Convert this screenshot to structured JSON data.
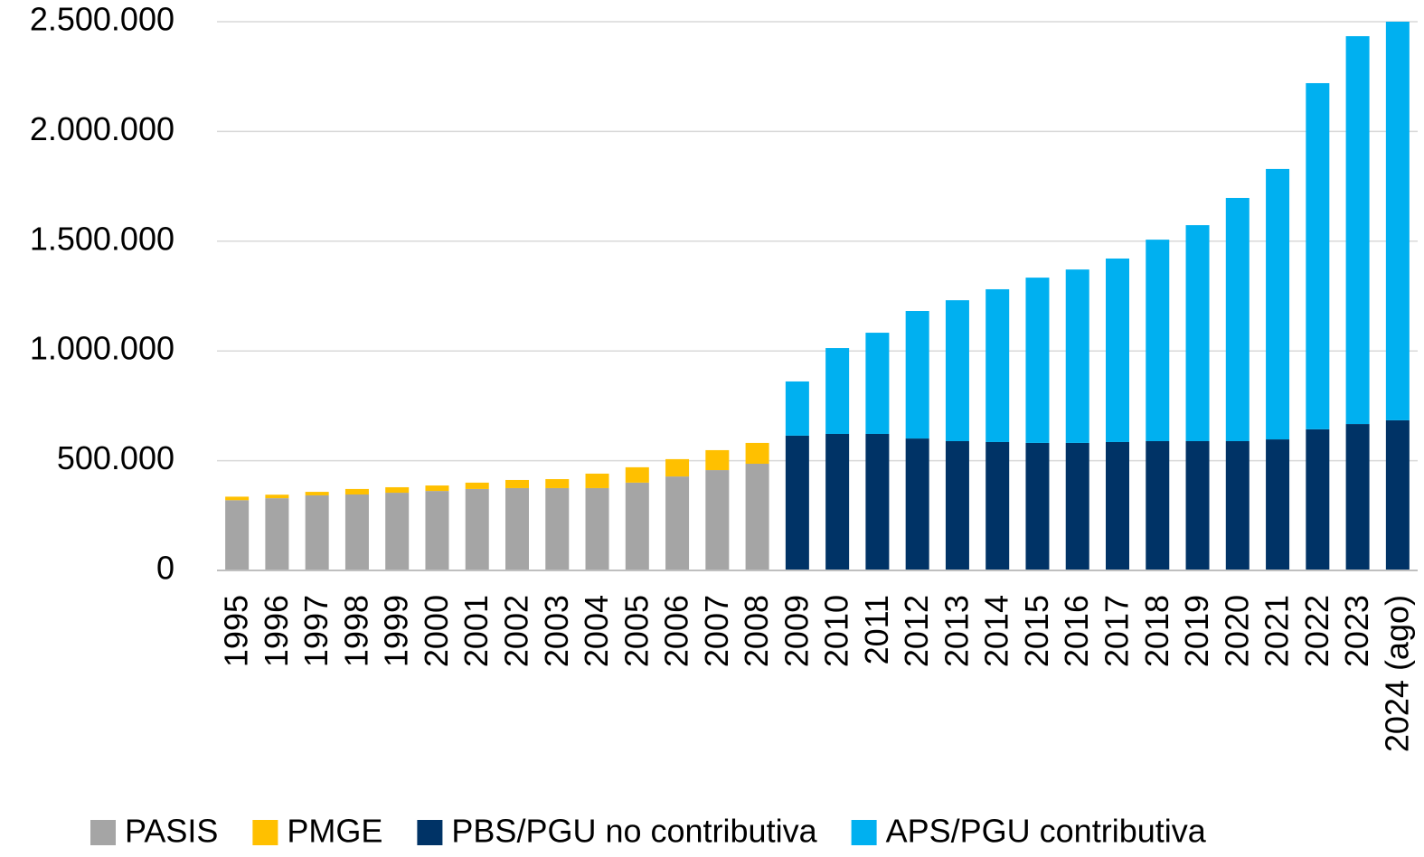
{
  "chart_data": {
    "type": "stacked_bar",
    "categories": [
      "1995",
      "1996",
      "1997",
      "1998",
      "1999",
      "2000",
      "2001",
      "2002",
      "2003",
      "2004",
      "2005",
      "2006",
      "2007",
      "2008",
      "2009",
      "2010",
      "2011",
      "2012",
      "2013",
      "2014",
      "2015",
      "2016",
      "2017",
      "2018",
      "2019",
      "2020",
      "2021",
      "2022",
      "2023",
      "2024 (ago)"
    ],
    "series": [
      {
        "name": "PASIS",
        "color": "#a5a5a5",
        "values": [
          320000,
          329000,
          342000,
          346000,
          354000,
          362000,
          371000,
          375000,
          375000,
          375000,
          400000,
          428000,
          457000,
          486000,
          null,
          null,
          null,
          null,
          null,
          null,
          null,
          null,
          null,
          null,
          null,
          null,
          null,
          null,
          null,
          null
        ]
      },
      {
        "name": "PMGE",
        "color": "#ffc000",
        "values": [
          16000,
          16000,
          16000,
          25000,
          25000,
          25000,
          29000,
          37000,
          41000,
          66000,
          70000,
          79000,
          91000,
          95000,
          null,
          null,
          null,
          null,
          null,
          null,
          null,
          null,
          null,
          null,
          null,
          null,
          null,
          null,
          null,
          null
        ]
      },
      {
        "name": "PBS/PGU no contributiva",
        "color": "#003366",
        "values": [
          null,
          null,
          null,
          null,
          null,
          null,
          null,
          null,
          null,
          null,
          null,
          null,
          null,
          null,
          614000,
          622000,
          622000,
          601000,
          589000,
          585000,
          581000,
          581000,
          585000,
          589000,
          589000,
          589000,
          597000,
          643000,
          667000,
          684000
        ]
      },
      {
        "name": "APS/PGU contributiva",
        "color": "#00b0f0",
        "values": [
          null,
          null,
          null,
          null,
          null,
          null,
          null,
          null,
          null,
          null,
          null,
          null,
          null,
          null,
          247000,
          391000,
          461000,
          581000,
          642000,
          696000,
          753000,
          790000,
          836000,
          918000,
          984000,
          1108000,
          1232000,
          1577000,
          1767000,
          1816000
        ]
      }
    ],
    "ylim": [
      0,
      2500000
    ],
    "yticks": [
      0,
      {
        "value": 500000,
        "label": "500.000"
      },
      {
        "value": 1000000,
        "label": "1.000.000"
      },
      {
        "value": 1500000,
        "label": "1.500.000"
      },
      {
        "value": 2000000,
        "label": "2.000.000"
      },
      {
        "value": 2500000,
        "label": "2.500.000"
      }
    ],
    "grid": true,
    "legend": "bottom"
  }
}
